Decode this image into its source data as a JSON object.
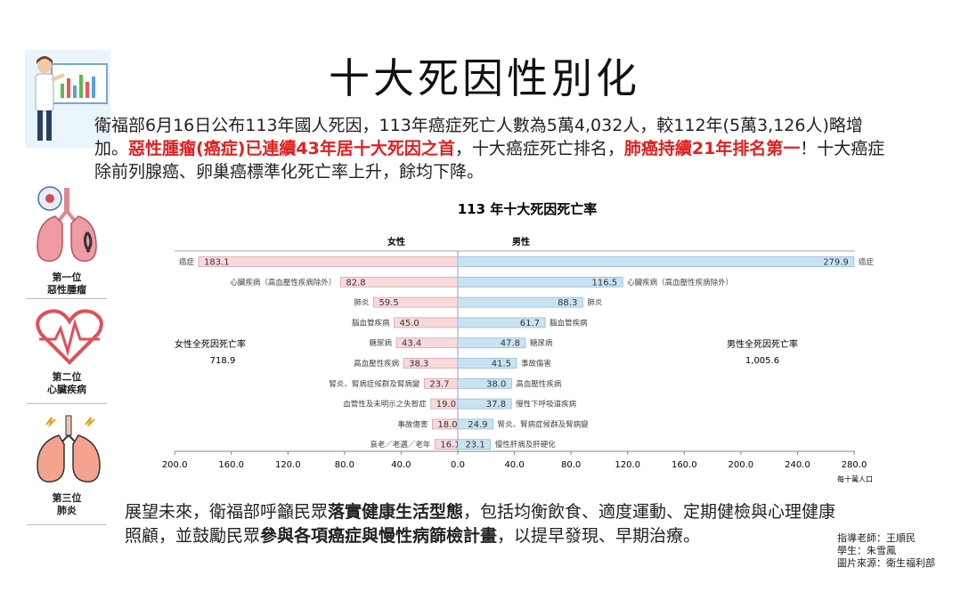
{
  "page": {
    "title": "十大死因性別化",
    "intro": {
      "part1": "衛福部6月16日公布113年國人死因，113年癌症死亡人數為5萬4,032人，較112年(5萬3,126人)略增加。",
      "highlight1": "惡性腫瘤(癌症)已連續43年居十大死因之首",
      "part2": "，十大癌症死亡排名，",
      "highlight2": "肺癌持續21年排名第一",
      "part3": "！十大癌症除前列腺癌、卵巢癌標準化死亡率上升，餘均下降。"
    },
    "outro": {
      "part1": "展望未來，衛福部呼籲民眾",
      "bold1": "落實健康生活型態",
      "part2": "，包括均衡飲食、適度運動、定期健檢與心理健康照顧，並鼓勵民眾",
      "bold2": "參與各項癌症與慢性病篩檢計畫",
      "part3": "，以提早發現、早期治療。"
    },
    "credits": {
      "teacher": "指導老師：王順民",
      "student": "學生：朱雪鳳",
      "source": "圖片來源：衛生福利部"
    },
    "ranks": [
      {
        "label1": "第一位",
        "label2": "惡性腫瘤",
        "icon": "lungs-cancer-icon"
      },
      {
        "label1": "第二位",
        "label2": "心臟疾病",
        "icon": "heart-icon"
      },
      {
        "label1": "第三位",
        "label2": "肺炎",
        "icon": "lungs-pneumonia-icon"
      }
    ]
  },
  "chart_data": {
    "type": "bar",
    "title": "113 年十大死因死亡率",
    "female_header": "女性",
    "male_header": "男性",
    "unit": "每十萬人口",
    "female_total_label": "女性全死因死亡率",
    "female_total_value": "718.9",
    "male_total_label": "男性全死因死亡率",
    "male_total_value": "1,005.6",
    "xlim_female": [
      0,
      200
    ],
    "xlim_male": [
      0,
      280
    ],
    "ticks_female": [
      "200.0",
      "160.0",
      "120.0",
      "80.0",
      "40.0"
    ],
    "ticks_male": [
      "0.0",
      "40.0",
      "80.0",
      "120.0",
      "160.0",
      "200.0",
      "240.0",
      "280.0"
    ],
    "female_color": "#f8d9dc",
    "male_color": "#c9e3f2",
    "series": [
      {
        "name": "女性",
        "categories": [
          "癌症",
          "心臟疾病（高血壓性疾病除外）",
          "肺炎",
          "腦血管疾病",
          "糖尿病",
          "高血壓性疾病",
          "腎炎、腎病症候群及腎病變",
          "血管性及未明示之失智症",
          "事故傷害",
          "衰老／老邁／老年"
        ],
        "values": [
          183.1,
          82.8,
          59.5,
          45.0,
          43.4,
          38.3,
          23.7,
          19.0,
          18.0,
          16.1
        ]
      },
      {
        "name": "男性",
        "categories": [
          "癌症",
          "心臟疾病（高血壓性疾病除外）",
          "肺炎",
          "腦血管疾病",
          "糖尿病",
          "事故傷害",
          "高血壓性疾病",
          "慢性下呼吸道疾病",
          "腎炎、腎病症候群及腎病變",
          "慢性肝病及肝硬化"
        ],
        "values": [
          279.9,
          116.5,
          88.3,
          61.7,
          47.8,
          41.5,
          38.0,
          37.8,
          24.9,
          23.1
        ]
      }
    ]
  }
}
